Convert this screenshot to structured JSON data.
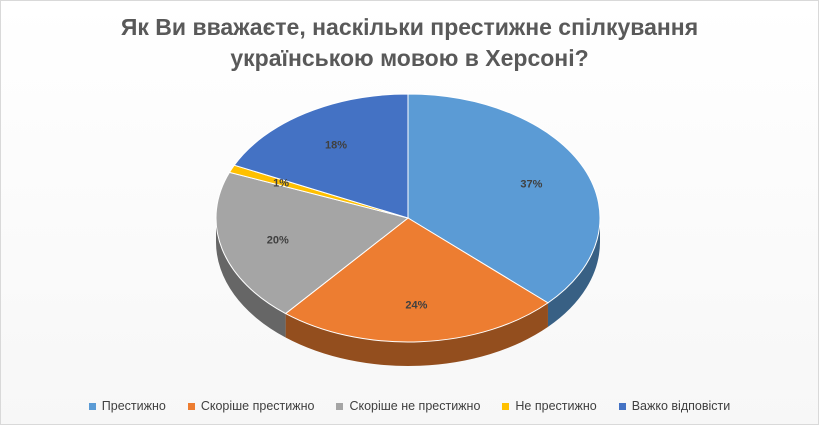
{
  "chart_data": {
    "type": "pie",
    "title_lines": [
      "Як Ви вважаєте, наскільки престижне спілкування",
      "українською мовою в Херсоні?"
    ],
    "categories": [
      "Престижно",
      "Скоріше престижно",
      "Скоріше не престижно",
      "Не престижно",
      "Важко відповісти"
    ],
    "values": [
      37,
      24,
      20,
      1,
      18
    ],
    "labels": [
      "37%",
      "24%",
      "20%",
      "1%",
      "18%"
    ],
    "colors": [
      "#5b9bd5",
      "#ed7d31",
      "#a5a5a5",
      "#ffc000",
      "#4472c4"
    ],
    "legend_position": "bottom",
    "style": "3d"
  }
}
